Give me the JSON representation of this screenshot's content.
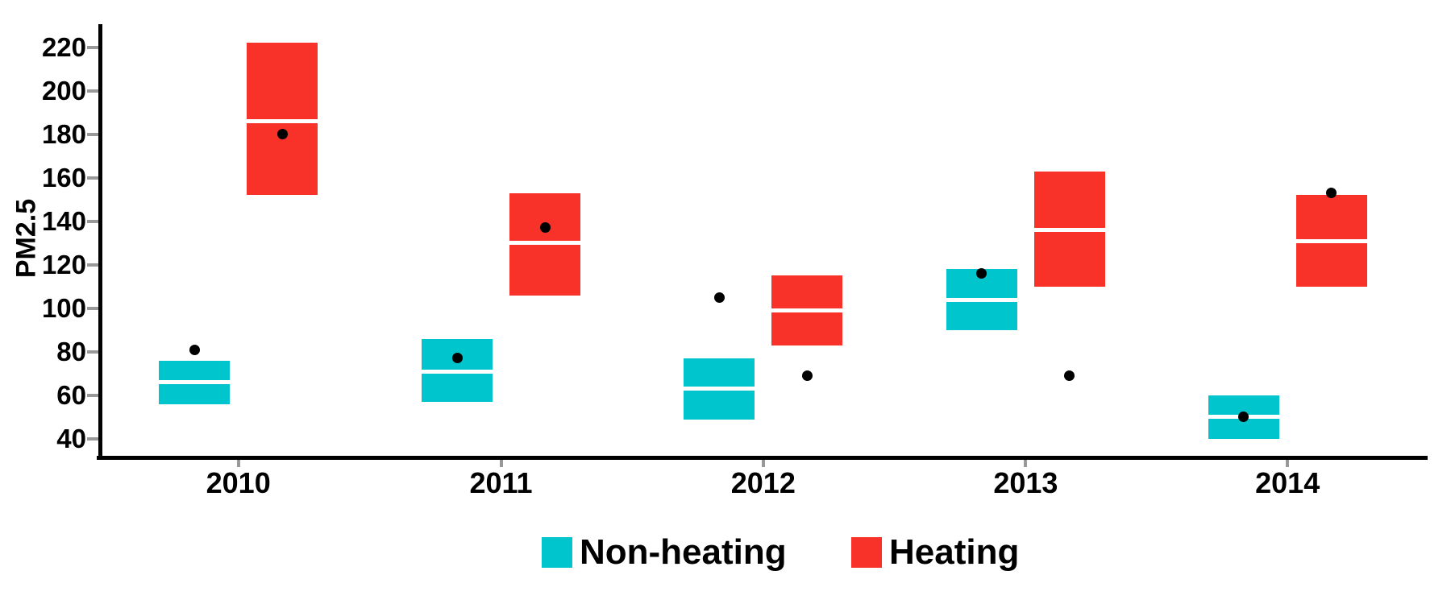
{
  "chart_data": {
    "type": "crossbar",
    "title": "",
    "xlabel": "",
    "ylabel": "PM2.5",
    "categories": [
      "2010",
      "2011",
      "2012",
      "2013",
      "2014"
    ],
    "y_ticks": [
      40,
      60,
      80,
      100,
      120,
      140,
      160,
      180,
      200,
      220
    ],
    "ylim": [
      32,
      230
    ],
    "grid": "off",
    "legend_position": "bottom",
    "series": [
      {
        "name": "Non-heating",
        "color": "#00C5CD",
        "boxes": [
          {
            "category": "2010",
            "lower": 56,
            "mid": 66,
            "upper": 76,
            "point": 81
          },
          {
            "category": "2011",
            "lower": 57,
            "mid": 71,
            "upper": 86,
            "point": 77
          },
          {
            "category": "2012",
            "lower": 49,
            "mid": 63,
            "upper": 77,
            "point": 105
          },
          {
            "category": "2013",
            "lower": 90,
            "mid": 104,
            "upper": 118,
            "point": 116
          },
          {
            "category": "2014",
            "lower": 40,
            "mid": 50,
            "upper": 60,
            "point": 50
          }
        ]
      },
      {
        "name": "Heating",
        "color": "#F93229",
        "boxes": [
          {
            "category": "2010",
            "lower": 152,
            "mid": 186,
            "upper": 222,
            "point": 180
          },
          {
            "category": "2011",
            "lower": 106,
            "mid": 130,
            "upper": 153,
            "point": 137
          },
          {
            "category": "2012",
            "lower": 83,
            "mid": 99,
            "upper": 115,
            "point": 69
          },
          {
            "category": "2013",
            "lower": 110,
            "mid": 136,
            "upper": 163,
            "point": 69
          },
          {
            "category": "2014",
            "lower": 110,
            "mid": 131,
            "upper": 152,
            "point": 153
          }
        ]
      }
    ]
  },
  "colors": {
    "axis": "#000000",
    "tick_marks": "#999999",
    "median_line": "#FFFFFF",
    "points": "#000000",
    "background": "#FFFFFF"
  }
}
